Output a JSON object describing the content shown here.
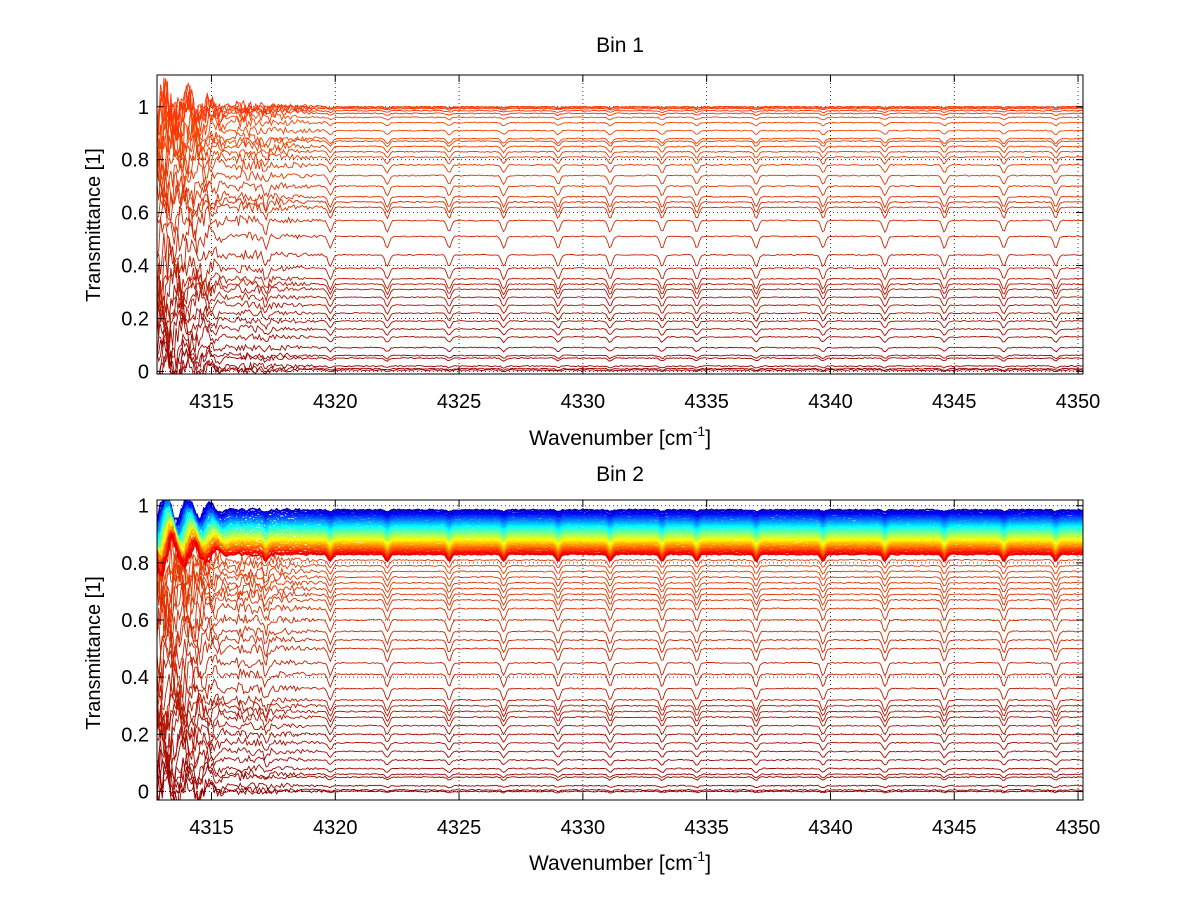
{
  "chart_data": [
    {
      "type": "line",
      "title": "Bin 1",
      "xlabel": "Wavenumber [cm",
      "xlabel_sup": "-1",
      "xlabel_suffix": "]",
      "ylabel": "Transmittance [1]",
      "xlim": [
        4312.8,
        4350.2
      ],
      "ylim": [
        -0.01,
        1.12
      ],
      "xticks": [
        4315,
        4320,
        4325,
        4330,
        4335,
        4340,
        4345,
        4350
      ],
      "yticks": [
        0,
        0.2,
        0.4,
        0.6,
        0.8,
        1
      ],
      "ytick_labels": [
        "0",
        "0.2",
        "0.4",
        "0.6",
        "0.8",
        "1"
      ],
      "grid": "dotted",
      "absorption_lines_cm-1": [
        4317.2,
        4319.8,
        4322.1,
        4324.6,
        4326.8,
        4329.0,
        4331.1,
        4333.2,
        4334.6,
        4337.0,
        4339.7,
        4342.2,
        4344.6,
        4347.0,
        4349.1
      ],
      "series_levels": [
        0.005,
        0.01,
        0.02,
        0.05,
        0.06,
        0.09,
        0.13,
        0.16,
        0.19,
        0.22,
        0.25,
        0.28,
        0.31,
        0.33,
        0.35,
        0.39,
        0.44,
        0.51,
        0.57,
        0.62,
        0.64,
        0.66,
        0.7,
        0.74,
        0.78,
        0.81,
        0.83,
        0.85,
        0.87,
        0.88,
        0.91,
        0.94,
        0.96,
        0.975,
        0.985,
        0.993,
        0.997,
        1.0
      ],
      "colormap": "jet"
    },
    {
      "type": "line",
      "title": "Bin 2",
      "xlabel": "Wavenumber [cm",
      "xlabel_sup": "-1",
      "xlabel_suffix": "]",
      "ylabel": "Transmittance [1]",
      "xlim": [
        4312.8,
        4350.2
      ],
      "ylim": [
        -0.03,
        1.02
      ],
      "xticks": [
        4315,
        4320,
        4325,
        4330,
        4335,
        4340,
        4345,
        4350
      ],
      "yticks": [
        0,
        0.2,
        0.4,
        0.6,
        0.8,
        1
      ],
      "ytick_labels": [
        "0",
        "0.2",
        "0.4",
        "0.6",
        "0.8",
        "1"
      ],
      "grid": "dotted",
      "absorption_lines_cm-1": [
        4317.2,
        4319.8,
        4322.1,
        4324.6,
        4326.8,
        4329.0,
        4331.1,
        4333.2,
        4334.6,
        4337.0,
        4339.7,
        4342.2,
        4344.6,
        4347.0,
        4349.1
      ],
      "series_levels": [
        0.0,
        0.005,
        0.02,
        0.05,
        0.06,
        0.08,
        0.11,
        0.14,
        0.17,
        0.2,
        0.23,
        0.26,
        0.28,
        0.3,
        0.32,
        0.36,
        0.41,
        0.45,
        0.5,
        0.53,
        0.56,
        0.6,
        0.64,
        0.67,
        0.69,
        0.71,
        0.73,
        0.75,
        0.77,
        0.79,
        0.81
      ],
      "band_range": [
        0.83,
        0.985
      ],
      "colormap": "jet"
    }
  ]
}
